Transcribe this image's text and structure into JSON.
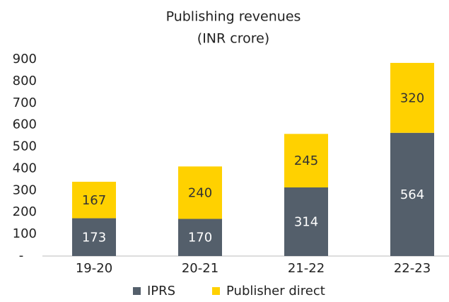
{
  "chart_data": {
    "type": "bar",
    "stacked": true,
    "title": "Publishing revenues",
    "subtitle": "(INR crore)",
    "categories": [
      "19-20",
      "20-21",
      "21-22",
      "22-23"
    ],
    "series": [
      {
        "name": "IPRS",
        "color": "#545f6b",
        "values": [
          173,
          170,
          314,
          564
        ]
      },
      {
        "name": "Publisher direct",
        "color": "#ffd100",
        "values": [
          167,
          240,
          245,
          320
        ]
      }
    ],
    "ylim": [
      0,
      900
    ],
    "yticks": [
      {
        "value": 0,
        "label": "-"
      },
      100,
      200,
      300,
      400,
      500,
      600,
      700,
      800,
      900
    ],
    "grid": false,
    "legend": "bottom"
  }
}
